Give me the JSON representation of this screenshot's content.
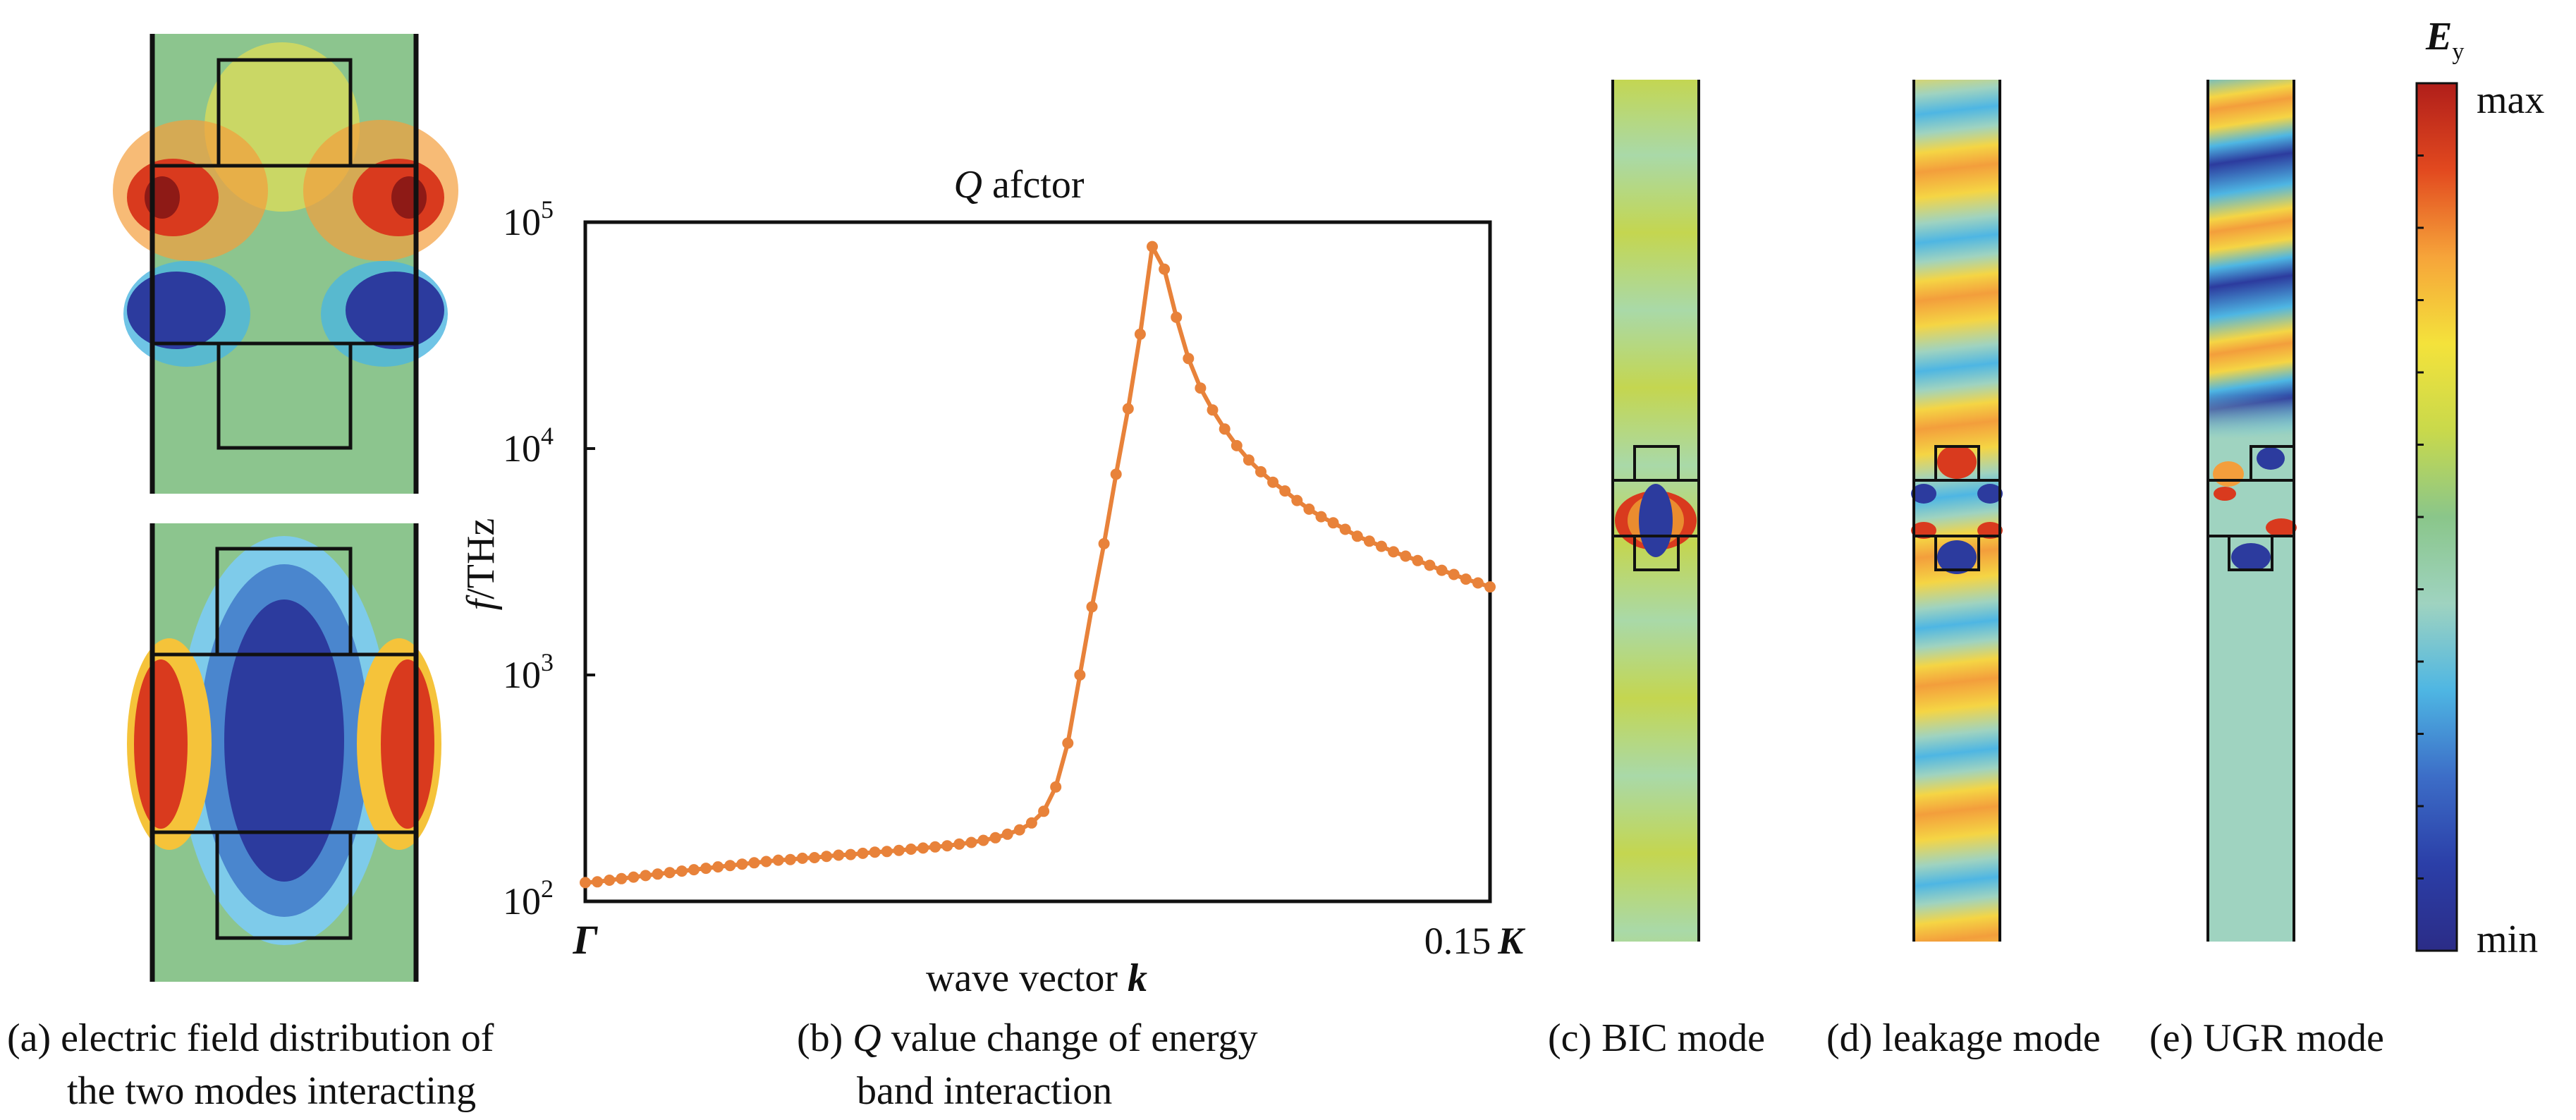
{
  "colors": {
    "line": "#E8823A",
    "cmap": [
      "#2B2C87",
      "#2B3FA8",
      "#3C6DC7",
      "#4EB6E3",
      "#9FD3C0",
      "#8AC68A",
      "#C9D94B",
      "#F4E23B",
      "#F6A43A",
      "#E2491F",
      "#B01E1A"
    ]
  },
  "panels": {
    "a": {
      "caption_line1": "(a) electric field distribution of",
      "caption_line2": "the two modes interacting"
    },
    "b": {
      "caption_line1_prefix": "(b) ",
      "caption_line1_q": "Q",
      "caption_line1_rest": " value change of energy",
      "caption_line2": "band interaction"
    },
    "c": {
      "caption": "(c) BIC mode"
    },
    "d": {
      "caption": "(d) leakage mode"
    },
    "e": {
      "caption": "(e) UGR mode"
    }
  },
  "colorbar": {
    "title_main": "E",
    "title_sub": "y",
    "max_label": "max",
    "min_label": "min"
  },
  "chart_data": {
    "type": "line",
    "title_italic": "Q",
    "title_rest": " afctor",
    "ylabel_italic": "f",
    "ylabel_rest": "/THz",
    "xlabel_text": "wave vector ",
    "xlabel_bold": "k",
    "xtick_left": "Γ",
    "xtick_right_value": "0.15",
    "xtick_right_letter": "K",
    "yscale": "log",
    "ylim": [
      100,
      100000
    ],
    "xlim": [
      0,
      0.15
    ],
    "ytick_labels": [
      {
        "base": "10",
        "exp": "2",
        "value": 100
      },
      {
        "base": "10",
        "exp": "3",
        "value": 1000
      },
      {
        "base": "10",
        "exp": "4",
        "value": 10000
      },
      {
        "base": "10",
        "exp": "5",
        "value": 100000
      }
    ],
    "grid": false,
    "series": [
      {
        "x": [
          0.0,
          0.002,
          0.004,
          0.006,
          0.008,
          0.01,
          0.012,
          0.014,
          0.016,
          0.018,
          0.02,
          0.022,
          0.024,
          0.026,
          0.028,
          0.03,
          0.032,
          0.034,
          0.036,
          0.038,
          0.04,
          0.042,
          0.044,
          0.046,
          0.048,
          0.05,
          0.052,
          0.054,
          0.056,
          0.058,
          0.06,
          0.062,
          0.064,
          0.066,
          0.068,
          0.07,
          0.072,
          0.074,
          0.076,
          0.078,
          0.08,
          0.082,
          0.084,
          0.086,
          0.088,
          0.09,
          0.092,
          0.094,
          0.096,
          0.098,
          0.1,
          0.102,
          0.104,
          0.106,
          0.108,
          0.11,
          0.112,
          0.114,
          0.116,
          0.118,
          0.12,
          0.122,
          0.124,
          0.126,
          0.128,
          0.13,
          0.132,
          0.134,
          0.136,
          0.138,
          0.14,
          0.142,
          0.144,
          0.146,
          0.148,
          0.15
        ],
        "values": [
          121,
          122,
          124,
          126,
          128,
          130,
          132,
          134,
          136,
          138,
          140,
          142,
          144,
          146,
          148,
          150,
          152,
          153,
          155,
          156,
          158,
          160,
          161,
          163,
          165,
          166,
          168,
          170,
          172,
          174,
          176,
          179,
          182,
          186,
          191,
          198,
          207,
          222,
          250,
          320,
          500,
          1000,
          2000,
          3800,
          7700,
          15000,
          32000,
          78000,
          62000,
          38000,
          25000,
          18500,
          14800,
          12200,
          10300,
          8900,
          7900,
          7100,
          6500,
          5900,
          5400,
          5000,
          4700,
          4400,
          4100,
          3900,
          3700,
          3500,
          3350,
          3200,
          3050,
          2900,
          2780,
          2650,
          2550,
          2450
        ]
      }
    ]
  }
}
